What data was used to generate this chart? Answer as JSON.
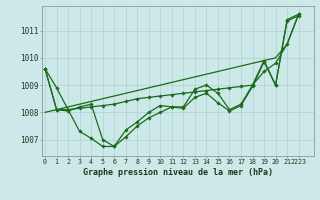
{
  "bg_color": "#cce8e8",
  "grid_color": "#b0d0d0",
  "line_color": "#1a6b1a",
  "marker_color": "#1a6b1a",
  "xlabel": "Graphe pression niveau de la mer (hPa)",
  "xlabel_fontsize": 6.0,
  "ylabel_ticks": [
    1007,
    1008,
    1009,
    1010,
    1011
  ],
  "xlim": [
    -0.3,
    23.3
  ],
  "ylim": [
    1006.4,
    1011.9
  ],
  "line1": [
    1009.6,
    1008.9,
    1008.1,
    1007.3,
    1007.05,
    1006.75,
    1006.75,
    1007.1,
    1007.5,
    1007.8,
    1008.0,
    1008.2,
    1008.2,
    1008.85,
    1009.0,
    1008.7,
    1008.1,
    1008.3,
    1009.0,
    1009.9,
    1009.0,
    1011.4,
    1011.6
  ],
  "line2": [
    1009.6,
    1008.1,
    1008.1,
    1008.15,
    1008.2,
    1008.25,
    1008.3,
    1008.4,
    1008.5,
    1008.55,
    1008.6,
    1008.65,
    1008.7,
    1008.75,
    1008.8,
    1008.85,
    1008.9,
    1008.95,
    1009.0,
    1009.5,
    1009.8,
    1010.5,
    1011.6
  ],
  "line3": [
    1009.6,
    1008.1,
    1008.05,
    1008.2,
    1008.3,
    1007.0,
    1006.75,
    1007.35,
    1007.65,
    1008.0,
    1008.25,
    1008.2,
    1008.15,
    1008.55,
    1008.7,
    1008.35,
    1008.05,
    1008.25,
    1008.95,
    1009.85,
    1009.0,
    1011.35,
    1011.55
  ],
  "line4_trend": [
    1008.0,
    1008.1,
    1008.2,
    1008.3,
    1008.4,
    1008.5,
    1008.6,
    1008.7,
    1008.8,
    1008.9,
    1009.0,
    1009.1,
    1009.2,
    1009.3,
    1009.4,
    1009.5,
    1009.6,
    1009.7,
    1009.8,
    1009.9,
    1010.0,
    1010.5,
    1011.6
  ]
}
